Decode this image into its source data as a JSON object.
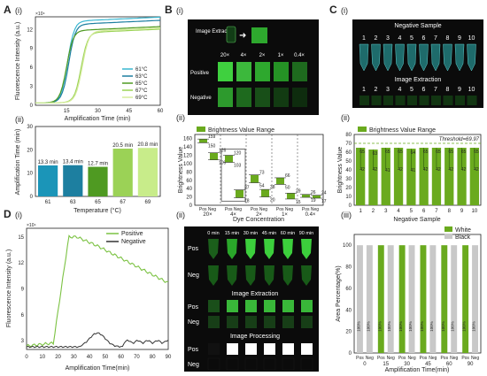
{
  "panel_labels": {
    "A": "A",
    "B": "B",
    "C": "C",
    "D": "D"
  },
  "sub_labels": {
    "i": "(i)",
    "ii": "(ii)",
    "iii": "(iii)"
  },
  "panel_A": {
    "curves": {
      "ylabel": "Fluorescence Intensity (a.u.)",
      "xlabel": "Amplification Time (min)",
      "ymax_exp": "×10⁴",
      "yticks": [
        "0",
        "3",
        "6",
        "9",
        "12"
      ],
      "xticks": [
        "15",
        "30",
        "45",
        "60"
      ],
      "legend": [
        "61°C",
        "63°C",
        "65°C",
        "67°C",
        "69°C"
      ]
    },
    "bars": {
      "ylabel": "Amplification Time (min)",
      "xlabel": "Temperature (°C)",
      "yticks": [
        "0",
        "10",
        "20",
        "30"
      ],
      "categories": [
        "61",
        "63",
        "65",
        "67",
        "69"
      ],
      "values": [
        13.3,
        13.4,
        12.7,
        20.5,
        20.8
      ],
      "labels": [
        "13.3 min",
        "13.4 min",
        "12.7 min",
        "20.5 min",
        "20.8 min"
      ]
    }
  },
  "panel_B": {
    "img": {
      "extraction": "Image Extraction",
      "positive": "Positive",
      "negative": "Negative",
      "dilutions": [
        "20×",
        "4×",
        "2×",
        "1×",
        "0.4×"
      ]
    },
    "box": {
      "legend": "Brightness Value Range",
      "ylabel": "Brightness Value",
      "xlabel": "Dye Concentration",
      "yticks": [
        "0",
        "20",
        "40",
        "60",
        "80",
        "100",
        "120",
        "140",
        "160"
      ],
      "groups": [
        "20×",
        "4×",
        "2×",
        "1×",
        "0.4×"
      ],
      "posneg": "Pos Neg",
      "boxes": [
        {
          "lo": 150,
          "hi": 159,
          "hi_label": "159",
          "lo_label": "150"
        },
        {
          "lo": 109,
          "hi": 126,
          "hi_label": "126",
          "lo_label": "109"
        },
        {
          "lo": 103,
          "hi": 120,
          "hi_label": "120",
          "lo_label": "103"
        },
        {
          "lo": 18,
          "hi": 37,
          "hi_label": "37",
          "lo_label": "18"
        },
        {
          "lo": 54,
          "hi": 73,
          "hi_label": "73",
          "lo_label": "54"
        },
        {
          "lo": 20,
          "hi": 38,
          "hi_label": "38",
          "lo_label": "20"
        },
        {
          "lo": 50,
          "hi": 66,
          "hi_label": "66",
          "lo_label": "50"
        },
        {
          "lo": 15,
          "hi": 29,
          "hi_label": "29",
          "lo_label": "15"
        },
        {
          "lo": 19,
          "hi": 26,
          "hi_label": "26",
          "lo_label": "19"
        },
        {
          "lo": 17,
          "hi": 24,
          "hi_label": "24",
          "lo_label": "17"
        }
      ]
    }
  },
  "panel_C": {
    "img": {
      "negative": "Negative Sample",
      "extraction": "Image Extraction",
      "nums": [
        "1",
        "2",
        "3",
        "4",
        "5",
        "6",
        "7",
        "8",
        "9",
        "10"
      ]
    },
    "bars": {
      "legend": "Brightness Value Range",
      "ylabel": "Brightness Value",
      "xlabel": "Negative Sample",
      "threshold_label": "Threshold=69.97",
      "threshold": 69.97,
      "yticks": [
        "0",
        "10",
        "20",
        "30",
        "40",
        "50",
        "60",
        "70",
        "80"
      ],
      "categories": [
        "1",
        "2",
        "3",
        "4",
        "5",
        "6",
        "7",
        "8",
        "9",
        "10"
      ],
      "hi": [
        65,
        63,
        65,
        65,
        64,
        65,
        65,
        65,
        65,
        65
      ],
      "lo": [
        42,
        42,
        41,
        42,
        41,
        42,
        42,
        42,
        42,
        42
      ]
    }
  },
  "panel_D": {
    "curves": {
      "ylabel": "Fluorescence Intensity (a.u.)",
      "xlabel": "Amplification Time(min)",
      "ymax_exp": "×10⁴",
      "yticks": [
        "3",
        "6",
        "9",
        "12",
        "15"
      ],
      "xticks": [
        "0",
        "10",
        "20",
        "30",
        "40",
        "50",
        "60",
        "70",
        "80",
        "90"
      ],
      "legend": [
        "Positive",
        "Negative"
      ]
    },
    "img": {
      "times": [
        "0 min",
        "15 min",
        "30 min",
        "45 min",
        "60 min",
        "90 min"
      ],
      "pos": "Pos",
      "neg": "Neg",
      "extraction": "Image Extraction",
      "processing": "Image Processing"
    },
    "stack": {
      "legend": [
        "White",
        "Black"
      ],
      "ylabel": "Area Percentage(%)",
      "xlabel": "Amplification Time(min)",
      "yticks": [
        "0",
        "20",
        "40",
        "60",
        "80",
        "100"
      ],
      "times": [
        "0",
        "15",
        "30",
        "45",
        "60",
        "90"
      ],
      "pos_white": [
        0,
        100,
        100,
        100,
        100,
        100
      ],
      "neg_white": [
        0,
        0,
        0,
        0,
        0,
        0
      ],
      "pct_label": "100%"
    }
  },
  "colors": {
    "green": "#6aaa1e",
    "lightgreen": "#b6e27a",
    "teal": "#1d9fb5",
    "gray": "#c8c8c8"
  }
}
